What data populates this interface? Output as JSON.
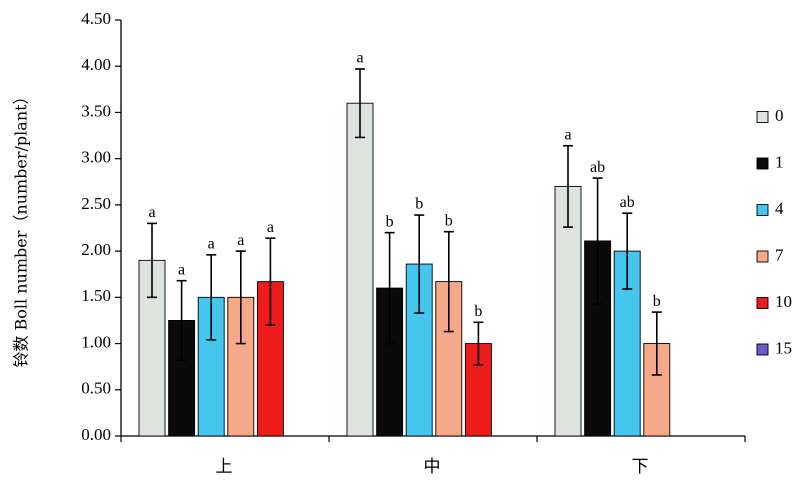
{
  "chart_data": {
    "type": "bar",
    "ylabel": "铃数 Boll number（number/plant）",
    "xlabel": "",
    "title": "",
    "ylim": [
      0,
      4.5
    ],
    "yticks": [
      "0.00",
      "0.50",
      "1.00",
      "1.50",
      "2.00",
      "2.50",
      "3.00",
      "3.50",
      "4.00",
      "4.50"
    ],
    "categories": [
      "上",
      "中",
      "下"
    ],
    "legend_position": "right",
    "grid": false,
    "series": [
      {
        "name": "0",
        "color": "#dde3df",
        "values": [
          1.9,
          3.6,
          2.7
        ],
        "errors": [
          0.4,
          0.37,
          0.44
        ],
        "labels": [
          "a",
          "a",
          "a"
        ]
      },
      {
        "name": "1",
        "color": "#0a0a0a",
        "values": [
          1.25,
          1.6,
          2.11
        ],
        "errors": [
          0.43,
          0.6,
          0.68
        ],
        "labels": [
          "a",
          "b",
          "ab"
        ]
      },
      {
        "name": "4",
        "color": "#45c6ee",
        "values": [
          1.5,
          1.86,
          2.0
        ],
        "errors": [
          0.46,
          0.53,
          0.41
        ],
        "labels": [
          "a",
          "b",
          "ab"
        ]
      },
      {
        "name": "7",
        "color": "#f5a98a",
        "values": [
          1.5,
          1.67,
          1.0
        ],
        "errors": [
          0.5,
          0.54,
          0.34
        ],
        "labels": [
          "a",
          "b",
          "b"
        ]
      },
      {
        "name": "10",
        "color": "#ec1c1c",
        "values": [
          1.67,
          1.0,
          null
        ],
        "errors": [
          0.47,
          0.23,
          null
        ],
        "labels": [
          "a",
          "b",
          ""
        ]
      },
      {
        "name": "15",
        "color": "#6a5acd",
        "values": [
          null,
          null,
          null
        ],
        "errors": [
          null,
          null,
          null
        ],
        "labels": [
          "",
          "",
          ""
        ]
      }
    ]
  }
}
